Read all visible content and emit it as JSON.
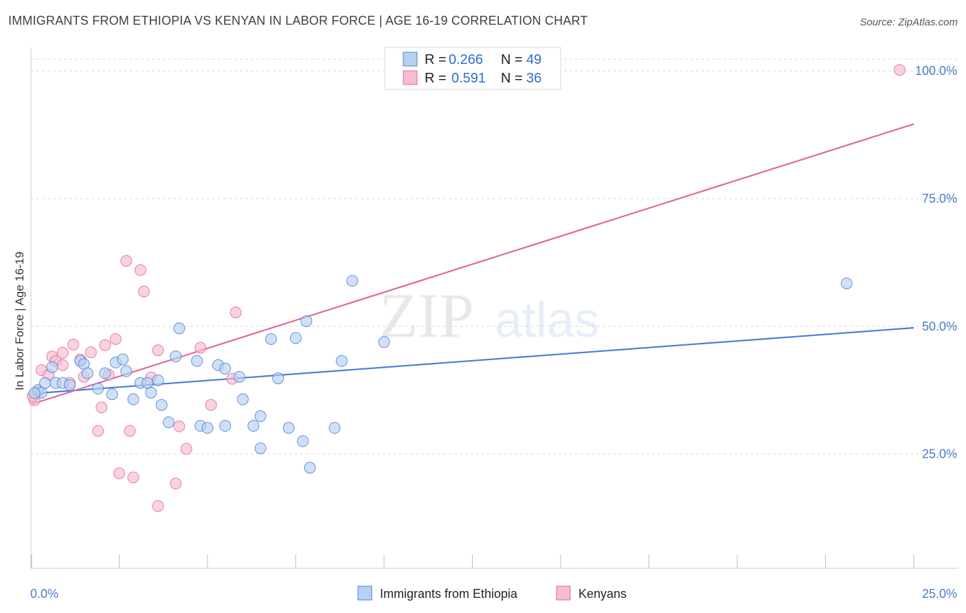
{
  "title": "IMMIGRANTS FROM ETHIOPIA VS KENYAN IN LABOR FORCE | AGE 16-19 CORRELATION CHART",
  "source": "Source: ZipAtlas.com",
  "watermark": {
    "zip": "ZIP",
    "atlas": "atlas"
  },
  "colors": {
    "blue": "#4a7fd4",
    "blue_fill": "#b6d1f2",
    "pink": "#e2689a",
    "pink_fill": "#f6bcd0",
    "tick_text": "#4a7cc9",
    "grid": "#d8d8d8"
  },
  "legend": {
    "rows": [
      {
        "r_label": "R =",
        "r_value": "0.266",
        "n_label": "N =",
        "n_value": "49"
      },
      {
        "r_label": "R =",
        "r_value": "0.591",
        "n_label": "N =",
        "n_value": "36"
      }
    ]
  },
  "chart_data": {
    "type": "scatter",
    "title": "IMMIGRANTS FROM ETHIOPIA VS KENYAN IN LABOR FORCE | AGE 16-19 CORRELATION CHART",
    "xlabel": "",
    "ylabel": "In Labor Force | Age 16-19",
    "xlim": [
      0,
      25
    ],
    "ylim": [
      2.6,
      104.6
    ],
    "x_tick_labels": [
      "0.0%",
      "25.0%"
    ],
    "y_ticks": [
      25,
      50,
      75,
      100
    ],
    "y_tick_labels": [
      "25.0%",
      "50.0%",
      "75.0%",
      "100.0%"
    ],
    "grid": true,
    "legend_position": "top-center",
    "series": [
      {
        "name": "Immigrants from Ethiopia",
        "color": "#4a7fd4",
        "trend": {
          "x": [
            0,
            25
          ],
          "y": [
            36.8,
            49.7
          ]
        },
        "points": [
          [
            0.2,
            37.5
          ],
          [
            0.3,
            37.0
          ],
          [
            0.4,
            38.9
          ],
          [
            0.6,
            42.0
          ],
          [
            0.7,
            38.9
          ],
          [
            0.9,
            38.9
          ],
          [
            1.1,
            38.5
          ],
          [
            1.4,
            43.2
          ],
          [
            1.5,
            42.6
          ],
          [
            1.6,
            40.8
          ],
          [
            1.9,
            37.8
          ],
          [
            2.1,
            40.8
          ],
          [
            2.3,
            36.7
          ],
          [
            2.4,
            42.9
          ],
          [
            2.6,
            43.5
          ],
          [
            2.7,
            41.2
          ],
          [
            2.9,
            35.7
          ],
          [
            3.1,
            38.9
          ],
          [
            3.3,
            38.9
          ],
          [
            3.4,
            37.0
          ],
          [
            3.6,
            39.4
          ],
          [
            3.7,
            34.6
          ],
          [
            3.9,
            31.2
          ],
          [
            4.1,
            44.1
          ],
          [
            4.2,
            49.6
          ],
          [
            4.7,
            43.2
          ],
          [
            4.8,
            30.5
          ],
          [
            5.0,
            30.1
          ],
          [
            5.3,
            42.4
          ],
          [
            5.5,
            30.5
          ],
          [
            5.5,
            41.7
          ],
          [
            5.9,
            40.1
          ],
          [
            6.0,
            35.7
          ],
          [
            6.3,
            30.5
          ],
          [
            6.5,
            26.1
          ],
          [
            6.5,
            32.4
          ],
          [
            6.8,
            47.5
          ],
          [
            7.0,
            39.8
          ],
          [
            7.3,
            30.1
          ],
          [
            7.5,
            47.7
          ],
          [
            7.7,
            27.5
          ],
          [
            7.8,
            51.0
          ],
          [
            7.9,
            22.3
          ],
          [
            8.6,
            30.1
          ],
          [
            8.8,
            43.2
          ],
          [
            9.1,
            58.9
          ],
          [
            10.0,
            46.9
          ],
          [
            23.1,
            58.4
          ],
          [
            0.1,
            36.9
          ]
        ]
      },
      {
        "name": "Kenyans",
        "color": "#e2689a",
        "trend": {
          "x": [
            0,
            25
          ],
          "y": [
            34.7,
            89.6
          ]
        },
        "points": [
          [
            0.1,
            35.5
          ],
          [
            0.2,
            37.2
          ],
          [
            0.3,
            41.4
          ],
          [
            0.5,
            40.5
          ],
          [
            0.6,
            44.1
          ],
          [
            0.7,
            43.2
          ],
          [
            0.9,
            42.4
          ],
          [
            0.9,
            44.8
          ],
          [
            1.1,
            38.9
          ],
          [
            1.2,
            46.4
          ],
          [
            1.4,
            43.5
          ],
          [
            1.5,
            40.1
          ],
          [
            1.7,
            44.9
          ],
          [
            1.9,
            29.5
          ],
          [
            2.0,
            34.1
          ],
          [
            2.1,
            46.3
          ],
          [
            2.2,
            40.5
          ],
          [
            2.4,
            47.5
          ],
          [
            2.5,
            21.2
          ],
          [
            2.7,
            62.8
          ],
          [
            2.8,
            29.5
          ],
          [
            2.9,
            20.4
          ],
          [
            3.1,
            61.0
          ],
          [
            3.2,
            56.8
          ],
          [
            3.4,
            40.0
          ],
          [
            3.6,
            45.3
          ],
          [
            3.6,
            14.8
          ],
          [
            4.1,
            19.2
          ],
          [
            4.2,
            30.4
          ],
          [
            4.4,
            26.0
          ],
          [
            4.8,
            45.8
          ],
          [
            5.1,
            34.6
          ],
          [
            5.7,
            39.7
          ],
          [
            5.8,
            52.7
          ],
          [
            24.6,
            100.2
          ],
          [
            0.05,
            36.3
          ]
        ]
      }
    ]
  },
  "bottom_legend": [
    {
      "label": "Immigrants from Ethiopia"
    },
    {
      "label": "Kenyans"
    }
  ]
}
